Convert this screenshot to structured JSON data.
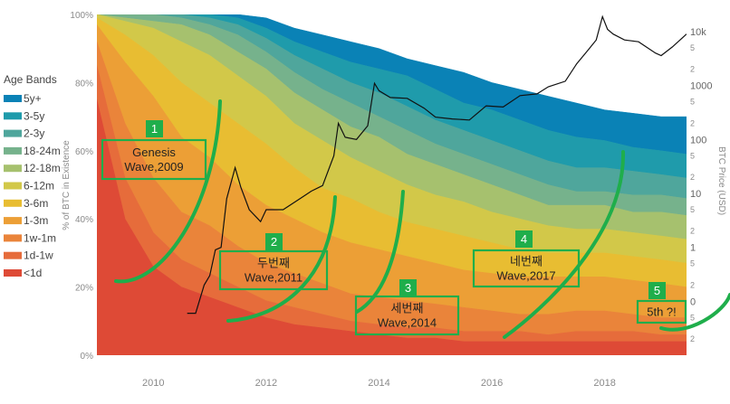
{
  "chart_data": {
    "type": "area",
    "title": "",
    "x_ticks": [
      "2010",
      "2012",
      "2014",
      "2016",
      "2018"
    ],
    "x_tick_years": [
      2010,
      2012,
      2014,
      2016,
      2018
    ],
    "xlim": [
      2009.0,
      2019.45
    ],
    "left_axis": {
      "label": "% of BTC in Existence",
      "ticks": [
        "0%",
        "20%",
        "40%",
        "60%",
        "80%",
        "100%"
      ],
      "range": [
        0,
        100
      ]
    },
    "right_axis": {
      "label": "BTC Price (USD)",
      "scale": "log",
      "labeled_ticks": [
        "0",
        "1",
        "10",
        "100",
        "1000",
        "10k"
      ],
      "minor_labels": [
        "2",
        "5",
        "2",
        "5",
        "2",
        "5",
        "2",
        "5",
        "2",
        "5",
        "2",
        "5",
        "2"
      ]
    },
    "legend": {
      "title": "Age Bands",
      "position": "left",
      "items": [
        {
          "label": "5y+",
          "color": "#0a82b6"
        },
        {
          "label": "3-5y",
          "color": "#1f9bab"
        },
        {
          "label": "2-3y",
          "color": "#4fa69c"
        },
        {
          "label": "18-24m",
          "color": "#76b28c"
        },
        {
          "label": "12-18m",
          "color": "#a6c16e"
        },
        {
          "label": "6-12m",
          "color": "#d2c849"
        },
        {
          "label": "3-6m",
          "color": "#e8bd32"
        },
        {
          "label": "1-3m",
          "color": "#ec9f36"
        },
        {
          "label": "1w-1m",
          "color": "#ea843a"
        },
        {
          "label": "1d-1w",
          "color": "#e66c3b"
        },
        {
          "label": "<1d",
          "color": "#de4a36"
        }
      ]
    },
    "band_years": [
      2009.0,
      2009.5,
      2010.0,
      2010.5,
      2011.0,
      2011.5,
      2012.0,
      2012.5,
      2013.0,
      2013.5,
      2014.0,
      2014.5,
      2015.0,
      2015.5,
      2016.0,
      2016.5,
      2017.0,
      2017.5,
      2018.0,
      2018.5,
      2019.0,
      2019.45
    ],
    "band_boundaries_pct": [
      [
        0,
        0,
        0,
        0,
        0,
        0,
        0,
        0,
        0,
        0,
        0,
        0,
        0,
        0,
        0,
        0,
        0,
        0,
        0,
        0,
        0,
        0
      ],
      [
        100,
        100,
        100,
        100,
        100,
        100,
        99,
        96,
        94,
        92,
        90,
        87,
        85,
        83,
        80,
        78,
        76,
        74,
        72,
        71,
        70,
        70
      ],
      [
        100,
        100,
        100,
        100,
        100,
        99,
        96,
        92,
        89,
        86,
        84,
        82,
        78,
        74,
        72,
        69,
        66,
        64,
        63,
        61,
        60,
        59
      ],
      [
        100,
        100,
        100,
        100,
        99,
        97,
        93,
        88,
        84,
        80,
        77,
        73,
        69,
        66,
        63,
        60,
        57,
        55,
        55,
        54,
        53,
        52
      ],
      [
        100,
        100,
        100,
        99,
        97,
        94,
        89,
        83,
        78,
        74,
        70,
        66,
        62,
        59,
        56,
        53,
        50,
        48,
        48,
        47,
        47,
        46
      ],
      [
        100,
        99,
        98,
        97,
        94,
        89,
        84,
        77,
        72,
        67,
        64,
        59,
        56,
        53,
        50,
        47,
        44,
        44,
        44,
        42,
        42,
        41
      ],
      [
        100,
        98,
        96,
        92,
        88,
        82,
        76,
        68,
        63,
        58,
        54,
        50,
        47,
        45,
        42,
        40,
        38,
        37,
        37,
        36,
        35,
        34
      ],
      [
        99,
        94,
        88,
        80,
        74,
        68,
        62,
        55,
        49,
        46,
        42,
        39,
        37,
        35,
        33,
        31,
        30,
        30,
        30,
        29,
        28,
        27
      ],
      [
        97,
        86,
        76,
        64,
        58,
        50,
        44,
        40,
        36,
        33,
        31,
        29,
        27,
        25,
        24,
        23,
        23,
        23,
        23,
        22,
        21,
        20
      ],
      [
        92,
        68,
        52,
        42,
        38,
        32,
        27,
        24,
        21,
        18,
        17,
        16,
        15,
        14,
        13,
        12,
        12,
        13,
        13,
        12,
        11,
        11
      ],
      [
        85,
        52,
        36,
        28,
        24,
        20,
        16,
        14,
        12,
        10,
        9,
        8,
        8,
        7,
        7,
        7,
        6,
        7,
        7,
        7,
        6,
        6
      ],
      [
        75,
        40,
        26,
        20,
        17,
        14,
        11,
        9,
        8,
        7,
        6,
        5,
        5,
        4,
        4,
        4,
        4,
        4,
        4,
        4,
        4,
        4
      ],
      [
        0,
        0,
        0,
        0,
        0,
        0,
        0,
        0,
        0,
        0,
        0,
        0,
        0,
        0,
        0,
        0,
        0,
        0,
        0,
        0,
        0,
        0
      ]
    ],
    "price_series": {
      "name": "BTC Price (USD)",
      "years": [
        2010.6,
        2010.75,
        2010.9,
        2011.0,
        2011.1,
        2011.2,
        2011.3,
        2011.45,
        2011.55,
        2011.7,
        2011.9,
        2012.0,
        2012.3,
        2012.6,
        2012.8,
        2013.0,
        2013.2,
        2013.28,
        2013.4,
        2013.6,
        2013.8,
        2013.92,
        2014.0,
        2014.2,
        2014.5,
        2014.8,
        2015.0,
        2015.3,
        2015.6,
        2015.9,
        2016.2,
        2016.5,
        2016.8,
        2017.0,
        2017.3,
        2017.5,
        2017.7,
        2017.85,
        2017.96,
        2018.05,
        2018.15,
        2018.35,
        2018.6,
        2018.9,
        2019.0,
        2019.2,
        2019.45
      ],
      "values": [
        0.06,
        0.06,
        0.2,
        0.3,
        0.9,
        1.0,
        8,
        30,
        13,
        5,
        3,
        5,
        5,
        8,
        11,
        14,
        50,
        200,
        110,
        100,
        180,
        1100,
        800,
        600,
        580,
        380,
        260,
        240,
        230,
        420,
        400,
        650,
        700,
        950,
        1200,
        2500,
        4500,
        7000,
        19000,
        11000,
        9000,
        7000,
        6500,
        4000,
        3600,
        5200,
        9000
      ]
    },
    "annotations": [
      {
        "number": "1",
        "text_lines": [
          "Genesis",
          "Wave,2009"
        ]
      },
      {
        "number": "2",
        "text_lines": [
          "두번째",
          "Wave,2011"
        ]
      },
      {
        "number": "3",
        "text_lines": [
          "세번째",
          "Wave,2014"
        ]
      },
      {
        "number": "4",
        "text_lines": [
          "네번째",
          "Wave,2017"
        ]
      },
      {
        "number": "5",
        "text_lines": [
          "5th ?!"
        ]
      }
    ],
    "grid": false
  }
}
